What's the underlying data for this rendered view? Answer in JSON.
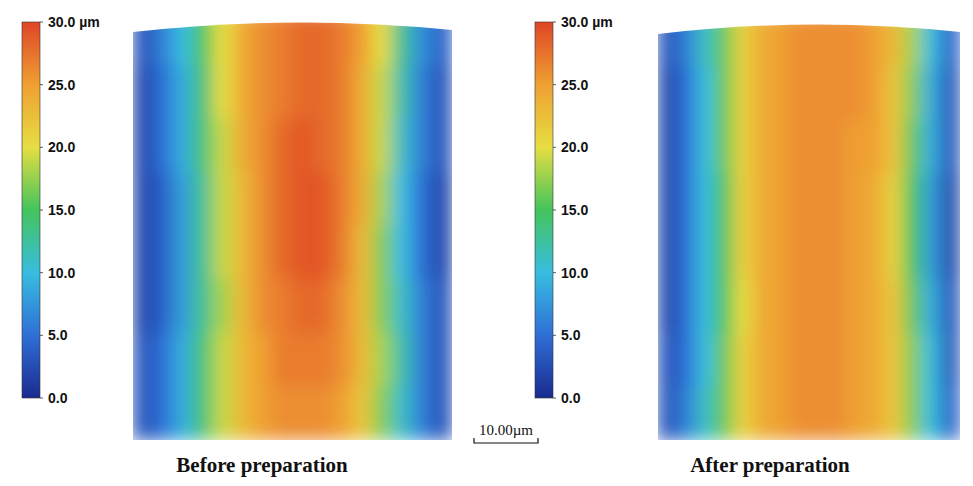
{
  "chart_data": [
    {
      "type": "heatmap",
      "title": "Before preparation",
      "tick_labels": false,
      "cells": [
        [
          3,
          6,
          10,
          15,
          20,
          24,
          26,
          27,
          28,
          28,
          27,
          25,
          20,
          13,
          7,
          4
        ],
        [
          2,
          5,
          9,
          14,
          20,
          24,
          26,
          27,
          28,
          28,
          27,
          24,
          19,
          12,
          6,
          3
        ],
        [
          2,
          5,
          9,
          14,
          19,
          24,
          26,
          28,
          29,
          28,
          27,
          24,
          19,
          11,
          6,
          3
        ],
        [
          2,
          4,
          8,
          13,
          19,
          23,
          26,
          28,
          29,
          29,
          27,
          24,
          18,
          10,
          5,
          2
        ],
        [
          2,
          4,
          8,
          13,
          19,
          23,
          26,
          28,
          29,
          29,
          27,
          23,
          17,
          10,
          5,
          2
        ],
        [
          2,
          4,
          8,
          13,
          18,
          23,
          26,
          27,
          28,
          28,
          26,
          23,
          17,
          11,
          6,
          3
        ],
        [
          3,
          5,
          9,
          14,
          19,
          23,
          25,
          27,
          27,
          27,
          26,
          23,
          18,
          12,
          6,
          3
        ],
        [
          3,
          5,
          9,
          14,
          19,
          23,
          25,
          26,
          26,
          26,
          25,
          22,
          17,
          11,
          6,
          3
        ]
      ],
      "colorbar_range": [
        0,
        30
      ],
      "colorbar_ticks": [
        {
          "value": 0,
          "label": "0.0"
        },
        {
          "value": 5,
          "label": "5.0"
        },
        {
          "value": 10,
          "label": "10.0"
        },
        {
          "value": 15,
          "label": "15.0"
        },
        {
          "value": 20,
          "label": "20.0"
        },
        {
          "value": 25,
          "label": "25.0"
        },
        {
          "value": 30,
          "label": "30.0 µm"
        }
      ],
      "annotation": "10.00µm"
    },
    {
      "type": "heatmap",
      "title": "After preparation",
      "tick_labels": false,
      "cells": [
        [
          3,
          6,
          11,
          16,
          21,
          24,
          25,
          26,
          26,
          26,
          26,
          25,
          23,
          18,
          10,
          4
        ],
        [
          2,
          5,
          10,
          16,
          21,
          24,
          25,
          26,
          26,
          26,
          26,
          25,
          22,
          17,
          9,
          3
        ],
        [
          2,
          5,
          10,
          16,
          21,
          24,
          25,
          26,
          26,
          26,
          25,
          25,
          22,
          16,
          9,
          3
        ],
        [
          2,
          5,
          10,
          15,
          21,
          24,
          25,
          26,
          26,
          26,
          25,
          24,
          21,
          15,
          8,
          2
        ],
        [
          2,
          5,
          10,
          15,
          21,
          24,
          25,
          26,
          26,
          26,
          25,
          24,
          21,
          15,
          8,
          2
        ],
        [
          2,
          5,
          10,
          15,
          20,
          24,
          25,
          26,
          26,
          26,
          25,
          24,
          22,
          16,
          9,
          3
        ],
        [
          3,
          5,
          10,
          16,
          21,
          24,
          25,
          26,
          26,
          26,
          25,
          24,
          22,
          17,
          10,
          3
        ],
        [
          3,
          6,
          11,
          16,
          21,
          24,
          25,
          26,
          26,
          26,
          25,
          24,
          22,
          17,
          10,
          4
        ]
      ],
      "colorbar_range": [
        0,
        30
      ],
      "colorbar_ticks": [
        {
          "value": 0,
          "label": "0.0"
        },
        {
          "value": 5,
          "label": "5.0"
        },
        {
          "value": 10,
          "label": "10.0"
        },
        {
          "value": 15,
          "label": "15.0"
        },
        {
          "value": 20,
          "label": "20.0"
        },
        {
          "value": 25,
          "label": "25.0"
        },
        {
          "value": 30,
          "label": "30.0 µm"
        }
      ]
    }
  ]
}
